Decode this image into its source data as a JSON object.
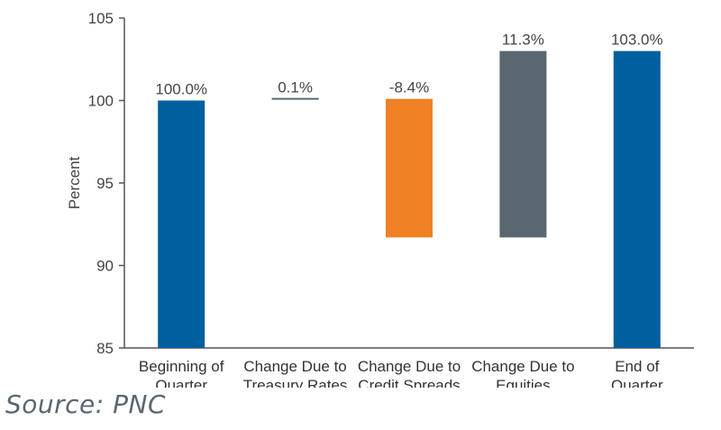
{
  "chart_data": {
    "type": "bar",
    "subtype": "waterfall",
    "ylabel": "Percent",
    "ylim": [
      85,
      105
    ],
    "yticks": [
      85,
      90,
      95,
      100,
      105
    ],
    "grid": false,
    "categories": [
      [
        "Beginning of",
        "Quarter"
      ],
      [
        "Change Due to",
        "Treasury Rates"
      ],
      [
        "Change Due to",
        "Credit Spreads"
      ],
      [
        "Change Due to",
        "Equities"
      ],
      [
        "End of",
        "Quarter"
      ]
    ],
    "bars": [
      {
        "start": 85.0,
        "end": 100.0,
        "label": "100.0%",
        "color": "#005f9e"
      },
      {
        "start": 100.0,
        "end": 100.1,
        "label": "0.1%",
        "color": "#5a6770"
      },
      {
        "start": 100.1,
        "end": 91.7,
        "label": "-8.4%",
        "color": "#f08125"
      },
      {
        "start": 91.7,
        "end": 103.0,
        "label": "11.3%",
        "color": "#5a6770"
      },
      {
        "start": 85.0,
        "end": 103.0,
        "label": "103.0%",
        "color": "#005f9e"
      }
    ]
  },
  "footer": {
    "source": "Source: PNC"
  }
}
